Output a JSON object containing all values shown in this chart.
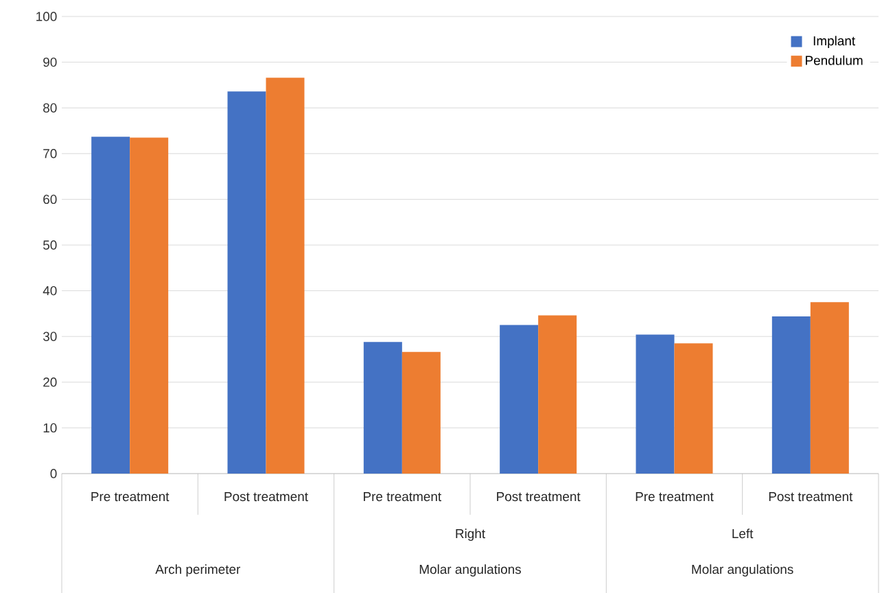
{
  "chart_data": {
    "type": "bar",
    "categories": [
      "Pre treatment",
      "Post treatment",
      "Pre treatment",
      "Post treatment",
      "Pre treatment",
      "Post treatment"
    ],
    "series": [
      {
        "name": "Implant",
        "color": "#4472c4",
        "values": [
          73.7,
          83.6,
          28.8,
          32.5,
          30.4,
          34.4
        ]
      },
      {
        "name": "Pendulum",
        "color": "#ed7d31",
        "values": [
          73.5,
          86.6,
          26.6,
          34.6,
          28.5,
          37.5
        ]
      }
    ],
    "annotations": [
      "Arch perimeter",
      "Right",
      "Molar angulations",
      "Left",
      "Molar angulations"
    ],
    "ylim": [
      0,
      100
    ],
    "yticks": [
      0,
      10,
      20,
      30,
      40,
      50,
      60,
      70,
      80,
      90,
      100
    ],
    "grid": true,
    "legend": "top right"
  }
}
